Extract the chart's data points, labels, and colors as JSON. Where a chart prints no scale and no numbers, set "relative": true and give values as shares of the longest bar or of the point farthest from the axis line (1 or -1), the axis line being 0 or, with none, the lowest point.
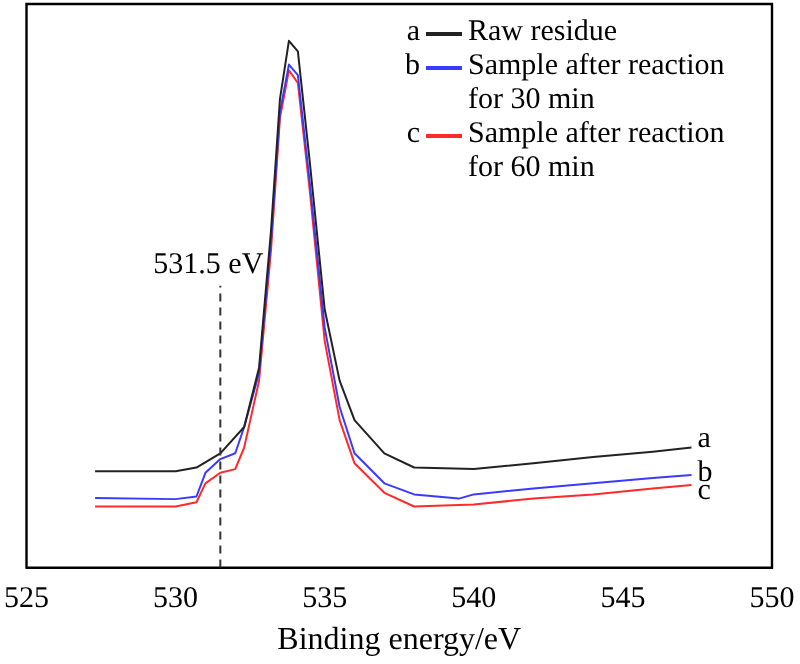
{
  "chart_data": {
    "type": "line",
    "xlabel": "Binding energy/eV",
    "relative": true,
    "xlim": [
      525,
      550
    ],
    "xticks": [
      525,
      530,
      535,
      540,
      545,
      550
    ],
    "grid": false,
    "legend": "top right",
    "marker": "none",
    "line_style": "solid",
    "series": [
      {
        "name": "a",
        "color": "#222222",
        "x": [
          527.3,
          530,
          530.7,
          531.5,
          532.3,
          532.8,
          533.2,
          533.5,
          533.8,
          534.1,
          534.5,
          535,
          535.5,
          536,
          537,
          538,
          540,
          542,
          544,
          546,
          547.3
        ],
        "values": [
          0.183,
          0.183,
          0.19,
          0.217,
          0.267,
          0.38,
          0.64,
          0.89,
          1,
          0.98,
          0.77,
          0.49,
          0.355,
          0.28,
          0.217,
          0.19,
          0.187,
          0.198,
          0.21,
          0.22,
          0.228
        ]
      },
      {
        "name": "b",
        "color": "#3a3aff",
        "x": [
          527.3,
          530,
          530.7,
          531,
          531.5,
          532,
          532.3,
          532.8,
          533.2,
          533.5,
          533.8,
          534.1,
          534.5,
          535,
          535.5,
          536,
          537,
          538,
          539.5,
          540,
          542,
          544,
          546,
          547.3
        ],
        "values": [
          0.132,
          0.13,
          0.135,
          0.18,
          0.206,
          0.217,
          0.267,
          0.37,
          0.62,
          0.865,
          0.955,
          0.935,
          0.73,
          0.455,
          0.305,
          0.217,
          0.16,
          0.139,
          0.131,
          0.139,
          0.15,
          0.16,
          0.17,
          0.176
        ]
      },
      {
        "name": "c",
        "color": "#ff2a2a",
        "x": [
          527.3,
          530,
          530.7,
          531,
          531.5,
          532,
          532.3,
          532.8,
          533.2,
          533.5,
          533.8,
          534.1,
          534.5,
          535,
          535.5,
          536,
          537,
          538,
          540,
          542,
          544,
          546,
          547.3
        ],
        "values": [
          0.116,
          0.116,
          0.124,
          0.16,
          0.18,
          0.187,
          0.228,
          0.355,
          0.603,
          0.854,
          0.944,
          0.92,
          0.715,
          0.43,
          0.28,
          0.198,
          0.142,
          0.116,
          0.12,
          0.131,
          0.139,
          0.15,
          0.157
        ]
      }
    ],
    "ref_lines": [
      {
        "axis": "x",
        "value": 531.5,
        "label": "531.5 eV",
        "line_style": "dashed",
        "color": "#333333"
      }
    ],
    "annotations": [
      "Raw residue",
      "Sample after reaction for 30 min",
      "Sample after reaction for 60 min"
    ]
  }
}
